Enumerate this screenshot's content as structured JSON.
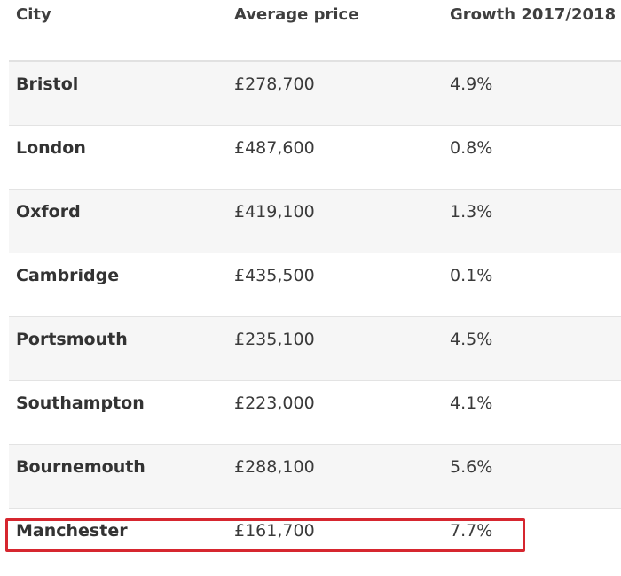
{
  "table": {
    "headers": [
      "City",
      "Average price",
      "Growth 2017/2018"
    ],
    "rows": [
      {
        "city": "Bristol",
        "price": "£278,700",
        "growth": "4.9%"
      },
      {
        "city": "London",
        "price": "£487,600",
        "growth": "0.8%"
      },
      {
        "city": "Oxford",
        "price": "£419,100",
        "growth": "1.3%"
      },
      {
        "city": "Cambridge",
        "price": "£435,500",
        "growth": "0.1%"
      },
      {
        "city": "Portsmouth",
        "price": "£235,100",
        "growth": "4.5%"
      },
      {
        "city": "Southampton",
        "price": "£223,000",
        "growth": "4.1%"
      },
      {
        "city": "Bournemouth",
        "price": "£288,100",
        "growth": "5.6%"
      },
      {
        "city": "Manchester",
        "price": "£161,700",
        "growth": "7.7%"
      }
    ],
    "highlighted_row": "Manchester",
    "highlight_color": "#d6262f"
  }
}
